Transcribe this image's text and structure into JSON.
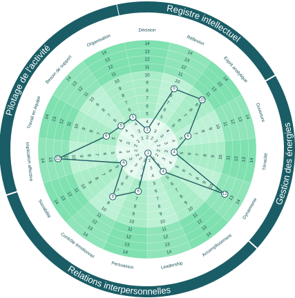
{
  "chart_data": {
    "type": "radar",
    "scale": {
      "min": 0,
      "max": 14,
      "ticks": [
        1,
        2,
        3,
        4,
        5,
        6,
        7,
        8,
        9,
        10,
        11,
        12,
        13,
        14
      ]
    },
    "groups": [
      {
        "name": "Registre intellectuel",
        "sectors": [
          "Réflexion",
          "Esprit analytique",
          "Ouverture"
        ]
      },
      {
        "name": "Gestion des énergies",
        "sectors": [
          "Ténacité",
          "Dynamisme",
          "Accomplissement"
        ]
      },
      {
        "name": "Relations interpersonnelles",
        "sectors": [
          "Leadership",
          "Persuasion",
          "Contrôle émotionnel",
          "Sociabilité",
          "Implication affective"
        ]
      },
      {
        "name": "Pilotage de l'activité",
        "sectors": [
          "Travail en équipe",
          "Besoin de support",
          "Organisation",
          "Décision"
        ]
      }
    ],
    "sectors": [
      "Décision",
      "Réflexion",
      "Esprit analytique",
      "Ouverture",
      "Ténacité",
      "Dynamisme",
      "Accomplissement",
      "Leadership",
      "Persuasion",
      "Contrôle émotionnel",
      "Sociabilité",
      "Implication affective",
      "Travail en équipe",
      "Besoin de support",
      "Organisation"
    ],
    "values": [
      3,
      9,
      10,
      6,
      4,
      12,
      4,
      1,
      6,
      8,
      4,
      12,
      6,
      5,
      5
    ],
    "colors": {
      "ring": "#1a5d66",
      "ring_text": "#ffffff",
      "band_light": "#dcf7ea",
      "band_mid": "#a9ecc8",
      "band_dark": "#7fe0b0",
      "line": "#1f5a63",
      "marker_fill": "#ffffff",
      "label_bg": "#ffffff"
    }
  }
}
